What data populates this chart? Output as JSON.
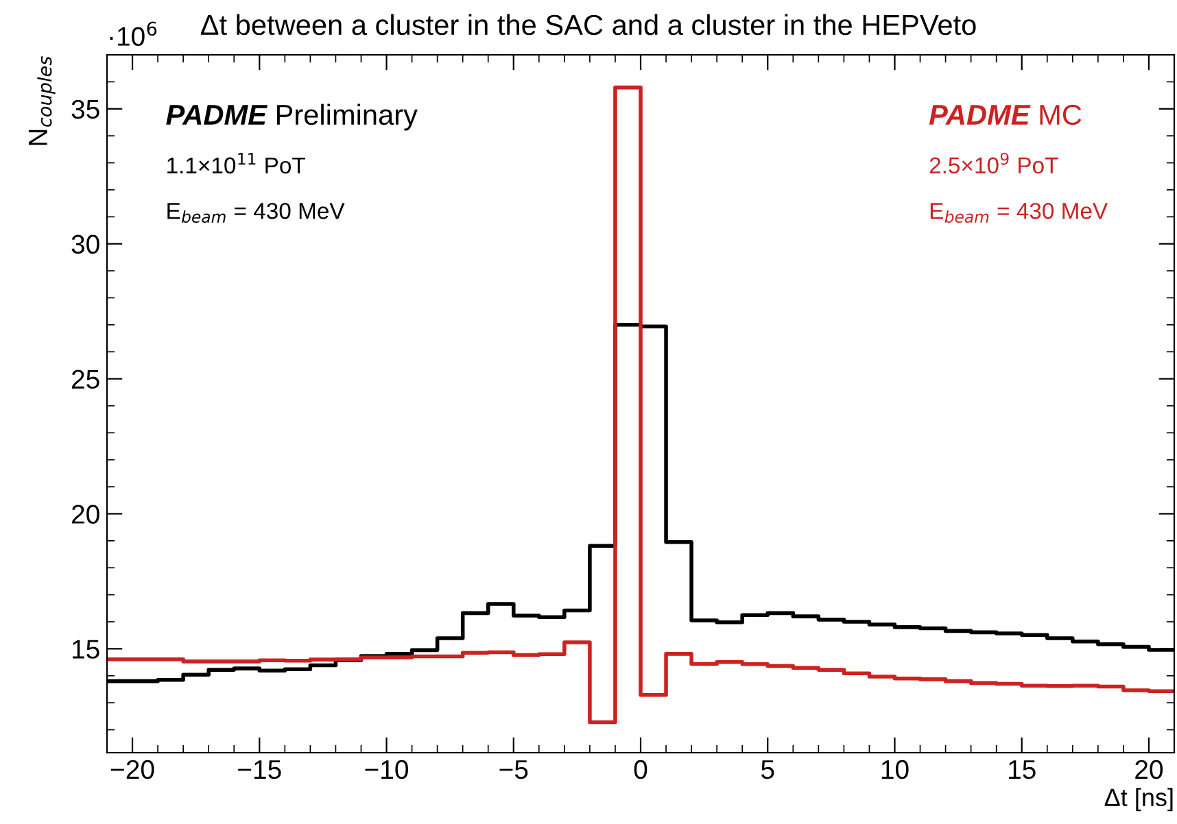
{
  "chart_data": {
    "type": "histogram",
    "title": "Δt between a cluster in the SAC and a cluster in the HEPVeto",
    "xlabel": "Δt [ns]",
    "ylabel": "N$_{couples}$",
    "annotations": [
      "PADME Preliminary",
      "1.1×10$^{11}$ PoT",
      "E$_{beam}$ = 430 MeV",
      "PADME MC",
      "2.5×10$^{9}$ PoT",
      "E$_{beam}$ = 430 MeV",
      "·10$^{6}$"
    ],
    "bins": [
      -21,
      -20,
      -19,
      -18,
      -17,
      -16,
      -15,
      -14,
      -13,
      -12,
      -11,
      -10,
      -9,
      -8,
      -7,
      -6,
      -5,
      -4,
      -3,
      -2,
      -1,
      0,
      1,
      2,
      3,
      4,
      5,
      6,
      7,
      8,
      9,
      10,
      11,
      12,
      13,
      14,
      15,
      16,
      17,
      18,
      19,
      20,
      21
    ],
    "series": [
      {
        "color": "#000000",
        "values": [
          13.8,
          13.8,
          13.85,
          14.04,
          14.22,
          14.27,
          14.19,
          14.24,
          14.39,
          14.58,
          14.73,
          14.81,
          14.95,
          15.39,
          16.32,
          16.66,
          16.23,
          16.17,
          16.42,
          18.81,
          27.0,
          26.94,
          18.95,
          16.05,
          15.98,
          16.25,
          16.32,
          16.2,
          16.08,
          16.0,
          15.9,
          15.8,
          15.76,
          15.66,
          15.61,
          15.57,
          15.51,
          15.39,
          15.27,
          15.17,
          15.07,
          14.96
        ]
      },
      {
        "color": "#cc2222",
        "values": [
          14.61,
          14.61,
          14.61,
          14.53,
          14.53,
          14.53,
          14.57,
          14.56,
          14.6,
          14.61,
          14.68,
          14.68,
          14.72,
          14.72,
          14.85,
          14.87,
          14.77,
          14.8,
          15.24,
          12.28,
          35.79,
          13.29,
          14.81,
          14.44,
          14.51,
          14.43,
          14.36,
          14.29,
          14.22,
          14.09,
          13.97,
          13.9,
          13.87,
          13.8,
          13.73,
          13.7,
          13.63,
          13.62,
          13.63,
          13.6,
          13.46,
          13.43
        ]
      }
    ],
    "xlim": [
      -21,
      21
    ],
    "ylim": [
      11.15,
      37.0
    ],
    "xticks": [
      {
        "value": -20,
        "label": "−20"
      },
      {
        "value": -15,
        "label": "−15"
      },
      {
        "value": -10,
        "label": "−10"
      },
      {
        "value": -5,
        "label": "−5"
      },
      0,
      5,
      10,
      15,
      20
    ],
    "yticks": [
      15,
      20,
      25,
      30,
      35
    ],
    "grid": false
  }
}
